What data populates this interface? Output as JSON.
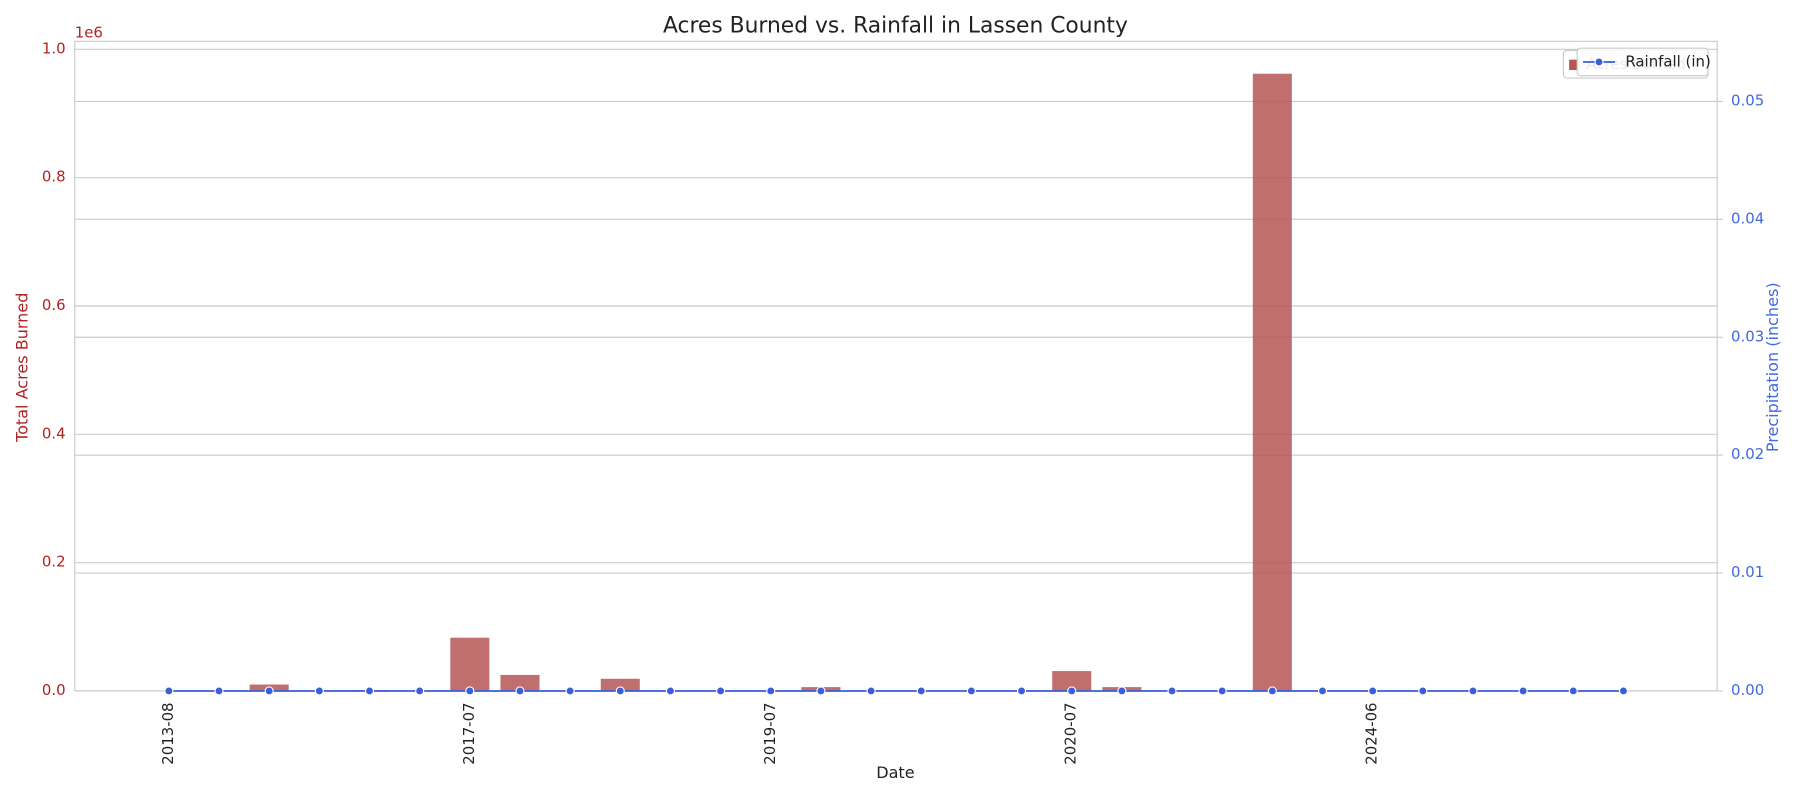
{
  "chart_data": {
    "type": "bar-line",
    "title": "Acres Burned vs. Rainfall in Lassen County",
    "x_label": "Date",
    "y_label": "Total Acres Burned",
    "y2_label": "Precipitation (inches)",
    "y_offset_label": "1e6",
    "categories": [
      "2013-08",
      null,
      null,
      null,
      null,
      null,
      "2017-07",
      null,
      null,
      null,
      null,
      null,
      "2019-07",
      null,
      null,
      null,
      null,
      null,
      "2020-07",
      null,
      null,
      null,
      null,
      null,
      "2024-06",
      null,
      null,
      null,
      null,
      null
    ],
    "series": [
      {
        "name": "Acres Burned",
        "type": "bar",
        "color": "#b55555",
        "values": [
          0,
          0,
          10000,
          0,
          1500,
          0,
          83000,
          25000,
          0,
          19000,
          0,
          0,
          0,
          6000,
          0,
          0,
          0,
          0,
          31000,
          6000,
          0,
          0,
          962000,
          0,
          0,
          0,
          0,
          0,
          0,
          0
        ]
      },
      {
        "name": "Rainfall (in)",
        "type": "line",
        "axis": "y2",
        "color": "#3a5fd9",
        "values": [
          0,
          0,
          0,
          0,
          0,
          0,
          0,
          0,
          0,
          0,
          0,
          0,
          0,
          0,
          0,
          0,
          0,
          0,
          0,
          0,
          0,
          0,
          0,
          0,
          0,
          0,
          0,
          0,
          0,
          0
        ]
      }
    ],
    "ylim": [
      0,
      1012500
    ],
    "yticks": [
      {
        "value": 0,
        "label": "0.0"
      },
      {
        "value": 200000,
        "label": "0.2"
      },
      {
        "value": 400000,
        "label": "0.4"
      },
      {
        "value": 600000,
        "label": "0.6"
      },
      {
        "value": 800000,
        "label": "0.8"
      },
      {
        "value": 1000000,
        "label": "1.0"
      }
    ],
    "y2lim": [
      0,
      0.0551
    ],
    "y2ticks": [
      {
        "value": 0,
        "label": "0.00"
      },
      {
        "value": 0.01,
        "label": "0.01"
      },
      {
        "value": 0.02,
        "label": "0.02"
      },
      {
        "value": 0.03,
        "label": "0.03"
      },
      {
        "value": 0.04,
        "label": "0.04"
      },
      {
        "value": 0.05,
        "label": "0.05"
      }
    ],
    "y_color": "#b22222",
    "y2_color": "#4169e1",
    "grid": true,
    "legend": "upper right"
  }
}
